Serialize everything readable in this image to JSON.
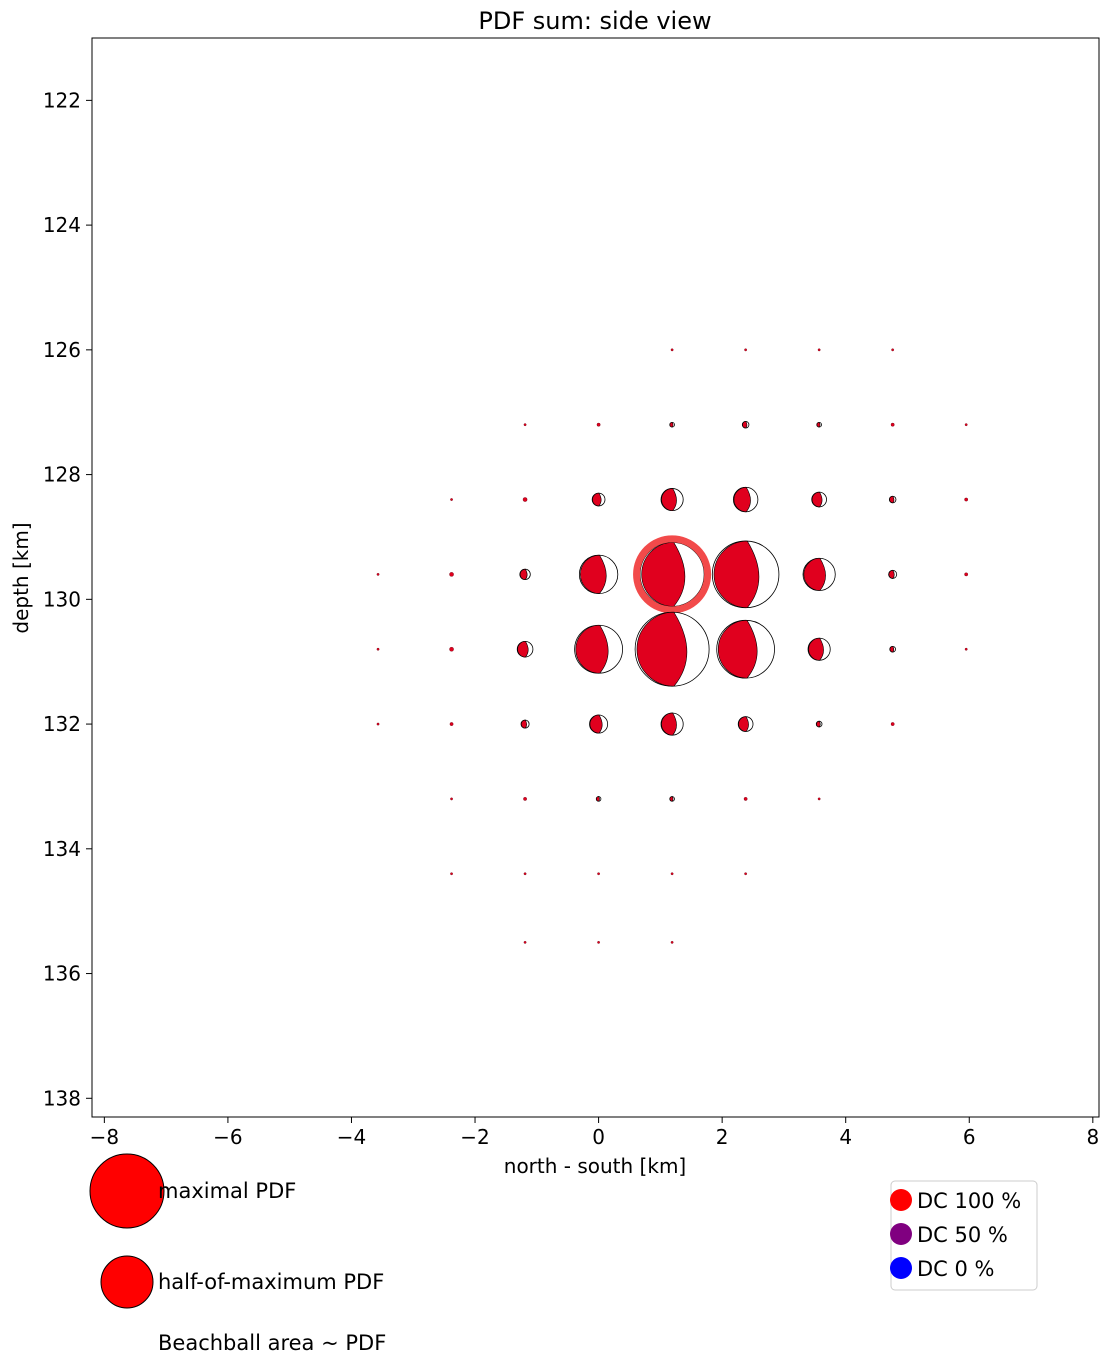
{
  "chart_data": {
    "type": "scatter",
    "title": "PDF sum: side view",
    "xlabel": "north - south [km]",
    "ylabel": "depth [km]",
    "xlim": [
      -8.2,
      8.1
    ],
    "ylim": [
      138.3,
      121.0
    ],
    "y_inverted": true,
    "x_ticks": [
      -8,
      -6,
      -4,
      -2,
      0,
      2,
      4,
      6,
      8
    ],
    "x_tick_labels": [
      "−8",
      "−6",
      "−4",
      "−2",
      "0",
      "2",
      "4",
      "6",
      "8"
    ],
    "y_ticks": [
      122,
      124,
      126,
      128,
      130,
      132,
      134,
      136,
      138
    ],
    "y_tick_labels": [
      "122",
      "124",
      "126",
      "128",
      "130",
      "132",
      "134",
      "136",
      "138"
    ],
    "grid": false,
    "marker_encoding": "beachball area ~ PDF, fill color ~ DC percentage",
    "points": [
      {
        "x": 1.19,
        "y": 126.0,
        "pdf": 0.001
      },
      {
        "x": 2.38,
        "y": 126.0,
        "pdf": 0.001
      },
      {
        "x": 3.57,
        "y": 126.0,
        "pdf": 0.001
      },
      {
        "x": 4.76,
        "y": 126.0,
        "pdf": 0.001
      },
      {
        "x": -1.19,
        "y": 127.2,
        "pdf": 0.001
      },
      {
        "x": 0.0,
        "y": 127.2,
        "pdf": 0.002
      },
      {
        "x": 1.19,
        "y": 127.2,
        "pdf": 0.004
      },
      {
        "x": 2.38,
        "y": 127.2,
        "pdf": 0.008
      },
      {
        "x": 3.57,
        "y": 127.2,
        "pdf": 0.004
      },
      {
        "x": 4.76,
        "y": 127.2,
        "pdf": 0.002
      },
      {
        "x": 5.95,
        "y": 127.2,
        "pdf": 0.001
      },
      {
        "x": -2.38,
        "y": 128.4,
        "pdf": 0.001
      },
      {
        "x": -1.19,
        "y": 128.4,
        "pdf": 0.003
      },
      {
        "x": 0.0,
        "y": 128.4,
        "pdf": 0.03
      },
      {
        "x": 1.19,
        "y": 128.4,
        "pdf": 0.09
      },
      {
        "x": 2.38,
        "y": 128.4,
        "pdf": 0.11
      },
      {
        "x": 3.57,
        "y": 128.4,
        "pdf": 0.04
      },
      {
        "x": 4.76,
        "y": 128.4,
        "pdf": 0.008
      },
      {
        "x": 5.95,
        "y": 128.4,
        "pdf": 0.002
      },
      {
        "x": -3.57,
        "y": 129.6,
        "pdf": 0.001
      },
      {
        "x": -2.38,
        "y": 129.6,
        "pdf": 0.003
      },
      {
        "x": -1.19,
        "y": 129.6,
        "pdf": 0.02
      },
      {
        "x": 0.0,
        "y": 129.6,
        "pdf": 0.27
      },
      {
        "x": 1.19,
        "y": 129.6,
        "pdf": 0.75,
        "highlight": true
      },
      {
        "x": 2.38,
        "y": 129.6,
        "pdf": 0.81
      },
      {
        "x": 3.57,
        "y": 129.6,
        "pdf": 0.19
      },
      {
        "x": 4.76,
        "y": 129.6,
        "pdf": 0.012
      },
      {
        "x": 5.95,
        "y": 129.6,
        "pdf": 0.002
      },
      {
        "x": -3.57,
        "y": 130.8,
        "pdf": 0.001
      },
      {
        "x": -2.38,
        "y": 130.8,
        "pdf": 0.003
      },
      {
        "x": -1.19,
        "y": 130.8,
        "pdf": 0.045
      },
      {
        "x": 0.0,
        "y": 130.8,
        "pdf": 0.42
      },
      {
        "x": 1.19,
        "y": 130.8,
        "pdf": 1.0
      },
      {
        "x": 2.38,
        "y": 130.8,
        "pdf": 0.61
      },
      {
        "x": 3.57,
        "y": 130.8,
        "pdf": 0.09
      },
      {
        "x": 4.76,
        "y": 130.8,
        "pdf": 0.006
      },
      {
        "x": 5.95,
        "y": 130.8,
        "pdf": 0.001
      },
      {
        "x": -3.57,
        "y": 132.0,
        "pdf": 0.001
      },
      {
        "x": -2.38,
        "y": 132.0,
        "pdf": 0.002
      },
      {
        "x": -1.19,
        "y": 132.0,
        "pdf": 0.012
      },
      {
        "x": 0.0,
        "y": 132.0,
        "pdf": 0.06
      },
      {
        "x": 1.19,
        "y": 132.0,
        "pdf": 0.09
      },
      {
        "x": 2.38,
        "y": 132.0,
        "pdf": 0.04
      },
      {
        "x": 3.57,
        "y": 132.0,
        "pdf": 0.006
      },
      {
        "x": 4.76,
        "y": 132.0,
        "pdf": 0.002
      },
      {
        "x": -2.38,
        "y": 133.2,
        "pdf": 0.001
      },
      {
        "x": -1.19,
        "y": 133.2,
        "pdf": 0.002
      },
      {
        "x": 0.0,
        "y": 133.2,
        "pdf": 0.004
      },
      {
        "x": 1.19,
        "y": 133.2,
        "pdf": 0.004
      },
      {
        "x": 2.38,
        "y": 133.2,
        "pdf": 0.002
      },
      {
        "x": 3.57,
        "y": 133.2,
        "pdf": 0.001
      },
      {
        "x": -2.38,
        "y": 134.4,
        "pdf": 0.001
      },
      {
        "x": -1.19,
        "y": 134.4,
        "pdf": 0.001
      },
      {
        "x": 0.0,
        "y": 134.4,
        "pdf": 0.001
      },
      {
        "x": 1.19,
        "y": 134.4,
        "pdf": 0.001
      },
      {
        "x": 2.38,
        "y": 134.4,
        "pdf": 0.001
      },
      {
        "x": -1.19,
        "y": 135.5,
        "pdf": 0.001
      },
      {
        "x": 0.0,
        "y": 135.5,
        "pdf": 0.001
      },
      {
        "x": 1.19,
        "y": 135.5,
        "pdf": 0.001
      }
    ]
  },
  "size_legend": {
    "max_label": "maximal PDF",
    "half_label": "half-of-maximum PDF",
    "note": "Beachball area ~ PDF",
    "color": "#ff0000"
  },
  "dc_legend": {
    "items": [
      {
        "label": "DC 100 %",
        "color": "#ff0000"
      },
      {
        "label": "DC 50 %",
        "color": "#800080"
      },
      {
        "label": "DC 0 %",
        "color": "#0000ff"
      }
    ]
  },
  "colors": {
    "beachball_fill": "#e0001e",
    "highlight_ring": "#f24a4a"
  }
}
